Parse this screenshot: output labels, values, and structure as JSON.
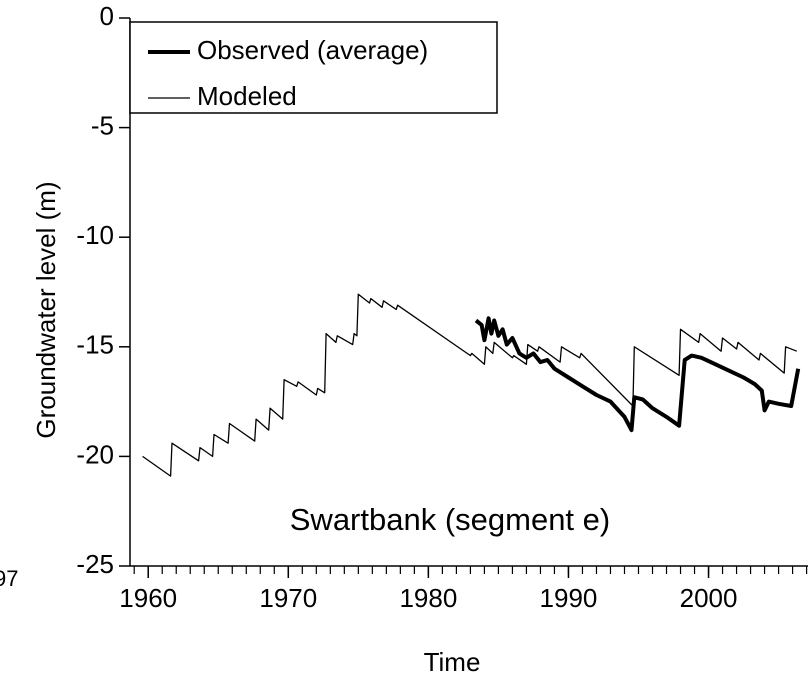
{
  "chart_data": {
    "type": "line",
    "y_label": "Groundwater level (m)",
    "x_label": "Time",
    "annotations": [
      "Swartbank (segment e)",
      "97"
    ],
    "xlim": [
      1958.7,
      2007.1
    ],
    "xticks": [
      1960,
      1970,
      1980,
      1990,
      2000
    ],
    "ylim": [
      -25,
      0
    ],
    "yticks": [
      -25,
      -20,
      -15,
      -10,
      -5,
      0
    ],
    "grid": false,
    "legend": "upper left",
    "series": [
      {
        "name": "Observed (average)",
        "color": "#000000",
        "line_width": 4,
        "x": [
          1983.4,
          1983.8,
          1984.0,
          1984.3,
          1984.5,
          1984.7,
          1985.0,
          1985.3,
          1985.6,
          1986.0,
          1986.5,
          1987.0,
          1987.5,
          1988.0,
          1988.5,
          1989.0,
          1990.0,
          1991.0,
          1992.0,
          1993.0,
          1994.0,
          1994.5,
          1994.7,
          1995.3,
          1996.0,
          1997.0,
          1997.9,
          1998.3,
          1998.8,
          1999.5,
          2000.5,
          2001.5,
          2002.5,
          2003.3,
          2003.8,
          2004.0,
          2004.3,
          2005.0,
          2005.9,
          2006.4
        ],
        "values": [
          -13.8,
          -14.0,
          -14.7,
          -13.7,
          -14.4,
          -13.8,
          -14.5,
          -14.2,
          -14.9,
          -14.6,
          -15.3,
          -15.5,
          -15.3,
          -15.7,
          -15.6,
          -16.0,
          -16.4,
          -16.8,
          -17.2,
          -17.5,
          -18.2,
          -18.8,
          -17.3,
          -17.4,
          -17.8,
          -18.2,
          -18.6,
          -15.6,
          -15.4,
          -15.5,
          -15.8,
          -16.1,
          -16.4,
          -16.7,
          -17.0,
          -17.9,
          -17.5,
          -17.6,
          -17.7,
          -16.0
        ]
      },
      {
        "name": "Modeled",
        "color": "#000000",
        "line_width": 1.3,
        "x": [
          1959.6,
          1961.6,
          1961.7,
          1963.6,
          1963.7,
          1964.6,
          1964.7,
          1965.7,
          1965.8,
          1967.6,
          1967.7,
          1968.6,
          1968.7,
          1969.6,
          1969.7,
          1970.6,
          1970.7,
          1972.0,
          1972.1,
          1972.6,
          1972.7,
          1973.4,
          1973.5,
          1974.6,
          1974.7,
          1974.9,
          1975.0,
          1975.8,
          1975.9,
          1976.7,
          1976.8,
          1977.7,
          1977.8,
          1983.0,
          1983.1,
          1984.0,
          1984.1,
          1984.6,
          1984.7,
          1986.0,
          1986.1,
          1987.0,
          1987.1,
          1987.8,
          1987.9,
          1989.4,
          1989.5,
          1990.8,
          1990.9,
          1994.6,
          1994.7,
          1997.9,
          1998.0,
          1999.3,
          1999.4,
          2000.9,
          2001.0,
          2002.0,
          2002.1,
          2003.6,
          2003.7,
          2005.4,
          2005.5,
          2006.3
        ],
        "values": [
          -20.0,
          -20.9,
          -19.4,
          -20.2,
          -19.6,
          -20.0,
          -19.0,
          -19.4,
          -18.5,
          -19.3,
          -18.3,
          -18.8,
          -17.8,
          -18.3,
          -16.5,
          -16.8,
          -16.6,
          -17.2,
          -16.9,
          -17.1,
          -14.4,
          -14.8,
          -14.5,
          -14.9,
          -14.4,
          -14.5,
          -12.6,
          -13.0,
          -12.8,
          -13.2,
          -12.9,
          -13.3,
          -13.1,
          -15.4,
          -15.3,
          -15.8,
          -15.0,
          -15.3,
          -14.8,
          -15.5,
          -15.4,
          -15.8,
          -14.9,
          -15.2,
          -15.0,
          -15.7,
          -15.0,
          -15.5,
          -15.3,
          -17.7,
          -15.0,
          -16.3,
          -14.2,
          -14.8,
          -14.4,
          -15.2,
          -14.6,
          -15.1,
          -14.8,
          -15.6,
          -15.3,
          -16.2,
          -15.0,
          -15.2
        ]
      }
    ]
  }
}
